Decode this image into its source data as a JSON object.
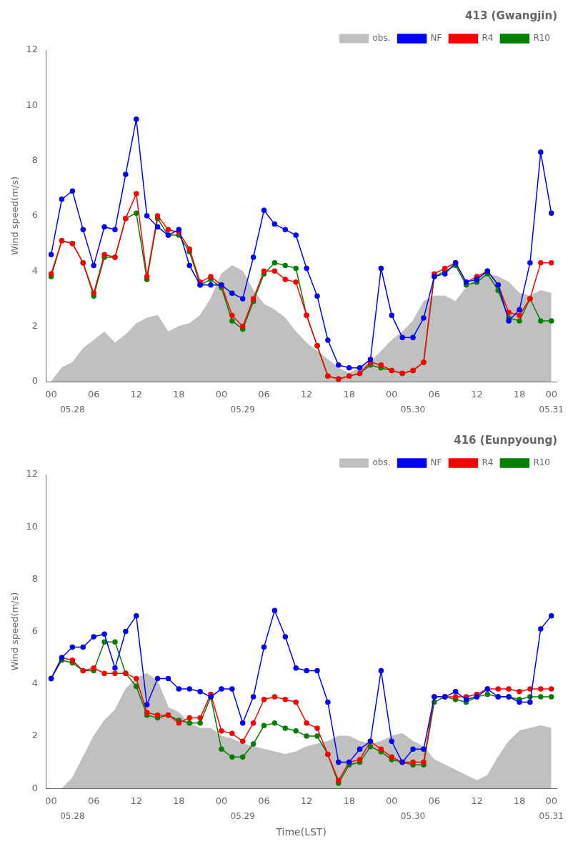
{
  "chart_data": [
    {
      "type": "line",
      "title": "413 (Gwangjin)",
      "ylabel": "Wind speed(m/s)",
      "categories": [
        "00",
        null,
        null,
        null,
        "06",
        null,
        null,
        null,
        "12",
        null,
        null,
        null,
        "18",
        null,
        null,
        null,
        "00",
        null,
        null,
        null,
        "06",
        null,
        null,
        null,
        "12",
        null,
        null,
        null,
        "18",
        null,
        null,
        null,
        "00",
        null,
        null,
        null,
        "06",
        null,
        null,
        null,
        "12",
        null,
        null,
        null,
        "18",
        null,
        null,
        "00"
      ],
      "annotations": [
        {
          "text": "05.28",
          "x": 2
        },
        {
          "text": "05.29",
          "x": 18
        },
        {
          "text": "05.30",
          "x": 34
        },
        {
          "text": "05.31",
          "x": 47
        }
      ],
      "series": [
        {
          "name": "obs.",
          "type": "area",
          "color": "#C0C0C0",
          "values": [
            0.0,
            0.5,
            0.7,
            1.2,
            1.5,
            1.8,
            1.4,
            1.7,
            2.1,
            2.3,
            2.4,
            1.8,
            2.0,
            2.1,
            2.4,
            3.0,
            3.9,
            4.2,
            4.0,
            3.3,
            2.8,
            2.6,
            2.3,
            1.8,
            1.4,
            1.1,
            0.8,
            0.5,
            0.3,
            0.5,
            0.7,
            1.1,
            1.5,
            1.8,
            2.2,
            2.9,
            3.1,
            3.1,
            2.9,
            3.4,
            3.8,
            3.9,
            3.8,
            3.6,
            3.2,
            3.1,
            3.3,
            3.2
          ]
        },
        {
          "name": "NF",
          "type": "line",
          "marker": "circle",
          "color": "#0000FF",
          "values": [
            4.6,
            6.6,
            6.9,
            5.5,
            4.2,
            5.6,
            5.5,
            7.5,
            9.5,
            6.0,
            5.6,
            5.3,
            5.5,
            4.2,
            3.5,
            3.5,
            3.5,
            3.2,
            3.0,
            4.5,
            6.2,
            5.7,
            5.5,
            5.3,
            4.1,
            3.1,
            1.5,
            0.6,
            0.5,
            0.5,
            0.8,
            4.1,
            2.4,
            1.6,
            1.6,
            2.3,
            3.8,
            3.9,
            4.3,
            3.6,
            3.7,
            4.0,
            3.5,
            2.2,
            2.6,
            4.3,
            8.3,
            6.1
          ]
        },
        {
          "name": "R4",
          "type": "line",
          "marker": "circle",
          "color": "#FF0000",
          "values": [
            3.9,
            5.1,
            5.0,
            4.3,
            3.2,
            4.6,
            4.5,
            5.9,
            6.8,
            3.8,
            6.0,
            5.5,
            5.4,
            4.8,
            3.6,
            3.8,
            3.5,
            2.4,
            2.0,
            3.0,
            4.0,
            4.0,
            3.7,
            3.6,
            2.4,
            1.3,
            0.2,
            0.1,
            0.2,
            0.3,
            0.7,
            0.6,
            0.4,
            0.3,
            0.4,
            0.7,
            3.9,
            4.1,
            4.3,
            3.6,
            3.8,
            4.0,
            3.5,
            2.5,
            2.4,
            3.0,
            4.3,
            4.3
          ]
        },
        {
          "name": "R10",
          "type": "line",
          "marker": "circle",
          "color": "#008000",
          "values": [
            3.8,
            5.1,
            5.0,
            4.3,
            3.1,
            4.5,
            4.5,
            5.9,
            6.1,
            3.7,
            5.9,
            5.3,
            5.3,
            4.7,
            3.5,
            3.7,
            3.4,
            2.2,
            1.9,
            2.9,
            3.9,
            4.3,
            4.2,
            4.1,
            2.4,
            1.3,
            0.2,
            0.1,
            0.2,
            0.3,
            0.6,
            0.5,
            0.4,
            0.3,
            0.4,
            0.7,
            3.8,
            4.0,
            4.2,
            3.5,
            3.6,
            3.9,
            3.3,
            2.3,
            2.2,
            3.0,
            2.2,
            2.2
          ]
        }
      ],
      "ylim": [
        0,
        12
      ],
      "yticks": [
        0,
        2,
        4,
        6,
        8,
        10,
        12
      ],
      "grid": false,
      "legend": "upper right"
    },
    {
      "type": "line",
      "title": "416 (Eunpyoung)",
      "ylabel": "Wind speed(m/s)",
      "xlabel": "Time(LST)",
      "categories": [
        "00",
        null,
        null,
        null,
        "06",
        null,
        null,
        null,
        "12",
        null,
        null,
        null,
        "18",
        null,
        null,
        null,
        "00",
        null,
        null,
        null,
        "06",
        null,
        null,
        null,
        "12",
        null,
        null,
        null,
        "18",
        null,
        null,
        null,
        "00",
        null,
        null,
        null,
        "06",
        null,
        null,
        null,
        "12",
        null,
        null,
        null,
        "18",
        null,
        null,
        "00"
      ],
      "annotations": [
        {
          "text": "05.28",
          "x": 2
        },
        {
          "text": "05.29",
          "x": 18
        },
        {
          "text": "05.30",
          "x": 34
        },
        {
          "text": "05.31",
          "x": 47
        }
      ],
      "series": [
        {
          "name": "obs.",
          "type": "area",
          "color": "#C0C0C0",
          "values": [
            0.0,
            0.0,
            0.4,
            1.2,
            2.0,
            2.6,
            3.0,
            3.8,
            4.2,
            4.4,
            4.1,
            3.1,
            2.9,
            2.5,
            2.3,
            2.3,
            2.0,
            1.9,
            1.7,
            1.6,
            1.5,
            1.4,
            1.3,
            1.4,
            1.6,
            1.7,
            1.8,
            2.0,
            2.0,
            1.8,
            1.7,
            1.8,
            2.0,
            2.1,
            1.8,
            1.6,
            1.1,
            0.9,
            0.7,
            0.5,
            0.3,
            0.5,
            1.2,
            1.8,
            2.2,
            2.3,
            2.4,
            2.3
          ]
        },
        {
          "name": "NF",
          "type": "line",
          "marker": "circle",
          "color": "#0000FF",
          "values": [
            4.2,
            5.0,
            5.4,
            5.4,
            5.8,
            5.9,
            4.6,
            6.0,
            6.6,
            3.2,
            4.2,
            4.2,
            3.8,
            3.8,
            3.7,
            3.5,
            3.8,
            3.8,
            2.5,
            3.5,
            5.4,
            6.8,
            5.8,
            4.6,
            4.5,
            4.5,
            3.3,
            1.0,
            1.0,
            1.5,
            1.8,
            4.5,
            1.8,
            1.0,
            1.5,
            1.5,
            3.5,
            3.5,
            3.7,
            3.4,
            3.5,
            3.8,
            3.5,
            3.5,
            3.3,
            3.3,
            6.1,
            6.6
          ]
        },
        {
          "name": "R4",
          "type": "line",
          "marker": "circle",
          "color": "#FF0000",
          "values": [
            4.2,
            5.0,
            4.9,
            4.5,
            4.6,
            4.4,
            4.4,
            4.4,
            4.2,
            2.9,
            2.8,
            2.8,
            2.5,
            2.7,
            2.7,
            3.6,
            2.2,
            2.1,
            1.8,
            2.5,
            3.4,
            3.5,
            3.4,
            3.3,
            2.5,
            2.3,
            1.3,
            0.3,
            1.0,
            1.1,
            1.8,
            1.5,
            1.2,
            1.0,
            1.0,
            1.0,
            3.5,
            3.5,
            3.5,
            3.5,
            3.6,
            3.8,
            3.8,
            3.8,
            3.7,
            3.8,
            3.8,
            3.8
          ]
        },
        {
          "name": "R10",
          "type": "line",
          "marker": "circle",
          "color": "#008000",
          "values": [
            4.2,
            4.9,
            4.8,
            4.5,
            4.5,
            5.6,
            5.6,
            4.4,
            3.9,
            2.8,
            2.7,
            2.8,
            2.6,
            2.5,
            2.5,
            3.5,
            1.5,
            1.2,
            1.2,
            1.7,
            2.4,
            2.5,
            2.3,
            2.2,
            2.0,
            2.0,
            1.3,
            0.2,
            0.9,
            1.0,
            1.6,
            1.4,
            1.1,
            1.0,
            0.9,
            0.9,
            3.3,
            3.5,
            3.4,
            3.3,
            3.5,
            3.6,
            3.5,
            3.5,
            3.4,
            3.5,
            3.5,
            3.5
          ]
        }
      ],
      "ylim": [
        0,
        12
      ],
      "yticks": [
        0,
        2,
        4,
        6,
        8,
        10,
        12
      ],
      "grid": false,
      "legend": "upper right"
    }
  ]
}
